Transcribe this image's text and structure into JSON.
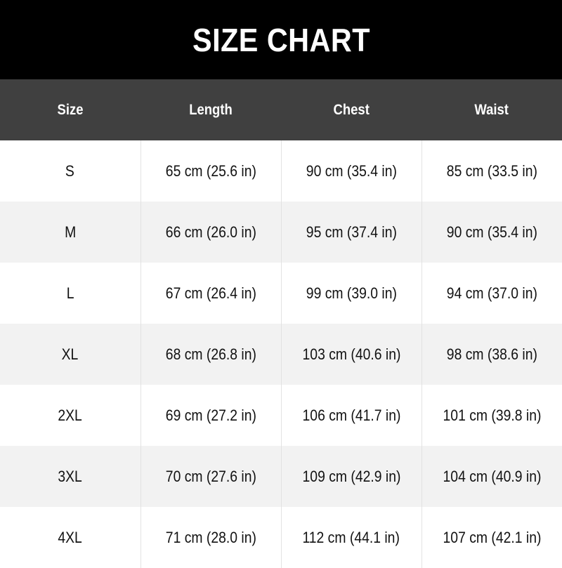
{
  "title": "SIZE CHART",
  "columns": [
    "Size",
    "Length",
    "Chest",
    "Waist"
  ],
  "rows": [
    [
      "S",
      "65 cm (25.6 in)",
      "90 cm (35.4 in)",
      "85 cm (33.5 in)"
    ],
    [
      "M",
      "66 cm (26.0 in)",
      "95 cm (37.4 in)",
      "90 cm (35.4 in)"
    ],
    [
      "L",
      "67 cm (26.4 in)",
      "99 cm (39.0 in)",
      "94 cm (37.0 in)"
    ],
    [
      "XL",
      "68 cm (26.8 in)",
      "103 cm (40.6 in)",
      "98 cm (38.6 in)"
    ],
    [
      "2XL",
      "69 cm (27.2 in)",
      "106 cm (41.7 in)",
      "101 cm (39.8 in)"
    ],
    [
      "3XL",
      "70 cm (27.6 in)",
      "109 cm (42.9 in)",
      "104 cm (40.9 in)"
    ],
    [
      "4XL",
      "71 cm (28.0 in)",
      "112 cm (44.1 in)",
      "107 cm (42.1 in)"
    ]
  ],
  "colors": {
    "title_bg": "#000000",
    "header_bg": "#404040",
    "row_alt": "#f2f2f2"
  }
}
